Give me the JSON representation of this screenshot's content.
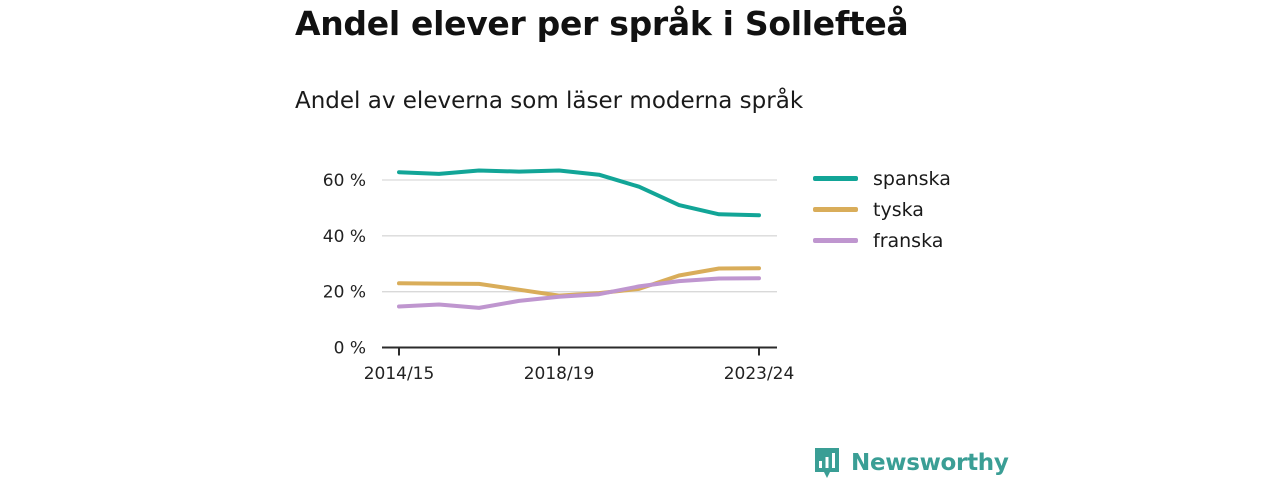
{
  "title": "Andel elever per språk i Sollefteå",
  "subtitle": "Andel av eleverna som läser moderna språk",
  "brand": {
    "name": "Newsworthy",
    "color": "#3a9e95",
    "logo_icon": "newsworthy-bar-chart-icon"
  },
  "chart_data": {
    "type": "line",
    "title": "Andel elever per språk i Sollefteå",
    "subtitle": "Andel av eleverna som läser moderna språk",
    "x": [
      "2014/15",
      "2015/16",
      "2016/17",
      "2017/18",
      "2018/19",
      "2019/20",
      "2020/21",
      "2021/22",
      "2022/23",
      "2023/24"
    ],
    "x_tick_labels": [
      "2014/15",
      "2018/19",
      "2023/24"
    ],
    "ylim": [
      0,
      70
    ],
    "y_ticks": [
      0,
      20,
      40,
      60
    ],
    "y_tick_labels": [
      "0 %",
      "20 %",
      "40 %",
      "60 %"
    ],
    "grid": "horizontal",
    "legend_position": "right",
    "series": [
      {
        "name": "spanska",
        "color": "#12a597",
        "values": [
          62.8,
          62.2,
          63.4,
          63.0,
          63.4,
          61.9,
          57.6,
          51.0,
          47.7,
          47.4
        ]
      },
      {
        "name": "tyska",
        "color": "#d9ad5a",
        "values": [
          23.0,
          22.9,
          22.8,
          20.7,
          18.6,
          19.5,
          21.0,
          25.8,
          28.3,
          28.4
        ]
      },
      {
        "name": "franska",
        "color": "#bf96cf",
        "values": [
          14.7,
          15.4,
          14.2,
          16.7,
          18.2,
          19.1,
          21.9,
          23.8,
          24.7,
          24.8
        ]
      }
    ]
  }
}
